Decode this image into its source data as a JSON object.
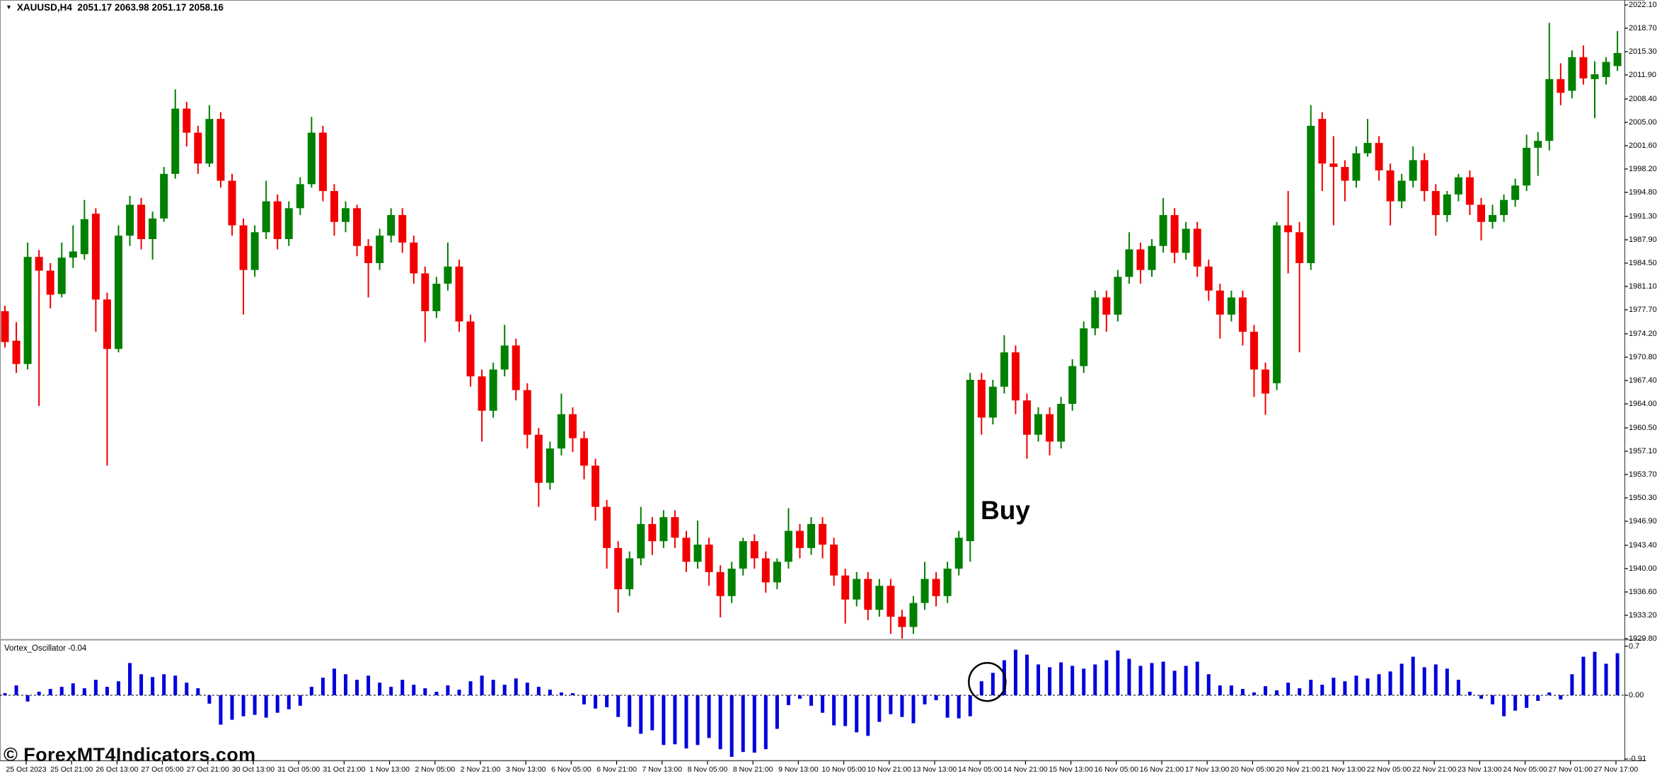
{
  "window": {
    "collapse_icon": "▼",
    "symbol_info_text": "XAUUSD,H4  2051.17 2063.98 2051.17 2058.16",
    "watermark": "© ForexMT4Indicators.com"
  },
  "chart_data": {
    "type": "candlestick_with_oscillator",
    "symbol": "XAUUSD",
    "timeframe": "H4",
    "info_ohlc": {
      "open": "2051.17",
      "high": "2063.98",
      "low": "2051.17",
      "close": "2058.16"
    },
    "colors": {
      "up": "#008000",
      "down": "#f20000",
      "oscillator": "#0000dd",
      "zero_line": "#000000",
      "axis_line": "#4a4a4a",
      "separator": "#9a9a9a"
    },
    "price_axis": {
      "labels": [
        "2022.10",
        "2018.70",
        "2015.30",
        "2011.90",
        "2008.40",
        "2005.00",
        "2001.60",
        "1998.20",
        "1994.80",
        "1991.30",
        "1987.90",
        "1984.50",
        "1981.10",
        "1977.70",
        "1974.20",
        "1970.80",
        "1967.40",
        "1964.00",
        "1960.50",
        "1957.10",
        "1953.70",
        "1950.30",
        "1946.90",
        "1943.40",
        "1940.00",
        "1936.60",
        "1933.20",
        "1929.80"
      ],
      "ymax": 2022.1,
      "ymin": 1929.8
    },
    "x_axis": {
      "labels": [
        "25 Oct 2023",
        "25 Oct 21:00",
        "26 Oct 13:00",
        "27 Oct 05:00",
        "27 Oct 21:00",
        "30 Oct 13:00",
        "31 Oct 05:00",
        "31 Oct 21:00",
        "1 Nov 13:00",
        "2 Nov 05:00",
        "2 Nov 21:00",
        "3 Nov 13:00",
        "6 Nov 05:00",
        "6 Nov 21:00",
        "7 Nov 13:00",
        "8 Nov 05:00",
        "8 Nov 21:00",
        "9 Nov 13:00",
        "10 Nov 05:00",
        "10 Nov 21:00",
        "13 Nov 13:00",
        "14 Nov 05:00",
        "14 Nov 21:00",
        "15 Nov 13:00",
        "16 Nov 05:00",
        "16 Nov 21:00",
        "17 Nov 13:00",
        "20 Nov 05:00",
        "20 Nov 21:00",
        "21 Nov 13:00",
        "22 Nov 05:00",
        "22 Nov 21:00",
        "23 Nov 13:00",
        "24 Nov 05:00",
        "27 Nov 01:00",
        "27 Nov 17:00"
      ]
    },
    "candles_ohlc": [
      [
        1977.5,
        1978.3,
        1972.2,
        1973.0
      ],
      [
        1973.2,
        1975.9,
        1968.5,
        1969.8
      ],
      [
        1969.8,
        1987.5,
        1969.0,
        1985.4
      ],
      [
        1985.4,
        1986.4,
        1963.7,
        1983.4
      ],
      [
        1983.4,
        1984.5,
        1977.9,
        1979.9
      ],
      [
        1980.0,
        1987.5,
        1979.5,
        1985.3
      ],
      [
        1985.3,
        1990.0,
        1983.8,
        1986.2
      ],
      [
        1985.8,
        1993.7,
        1985.0,
        1990.9
      ],
      [
        1991.7,
        1992.5,
        1974.5,
        1979.2
      ],
      [
        1979.2,
        1980.2,
        1955.0,
        1972.0
      ],
      [
        1972.0,
        1990.0,
        1971.5,
        1988.5
      ],
      [
        1988.5,
        1994.3,
        1987.0,
        1993.0
      ],
      [
        1993.0,
        1994.0,
        1986.5,
        1988.0
      ],
      [
        1988.0,
        1992.0,
        1985.0,
        1991.0
      ],
      [
        1991.0,
        1998.5,
        1990.5,
        1997.5
      ],
      [
        1997.5,
        2009.8,
        1996.8,
        2007.0
      ],
      [
        2007.0,
        2008.0,
        2001.5,
        2003.5
      ],
      [
        2003.5,
        2004.5,
        1997.5,
        1999.0
      ],
      [
        1999.0,
        2007.5,
        1998.5,
        2005.5
      ],
      [
        2005.5,
        2006.5,
        1995.5,
        1996.5
      ],
      [
        1996.5,
        1997.5,
        1988.5,
        1990.0
      ],
      [
        1990.0,
        1991.0,
        1977.0,
        1983.5
      ],
      [
        1983.5,
        1990.0,
        1982.5,
        1989.0
      ],
      [
        1989.0,
        1996.5,
        1988.0,
        1993.5
      ],
      [
        1993.5,
        1994.5,
        1986.5,
        1988.0
      ],
      [
        1988.0,
        1993.5,
        1987.0,
        1992.5
      ],
      [
        1992.5,
        1997.0,
        1991.5,
        1996.0
      ],
      [
        1996.0,
        2005.8,
        1995.5,
        2003.5
      ],
      [
        2003.5,
        2004.5,
        1993.5,
        1995.0
      ],
      [
        1995.0,
        1996.0,
        1988.5,
        1990.5
      ],
      [
        1990.5,
        1993.5,
        1989.0,
        1992.5
      ],
      [
        1992.5,
        1993.0,
        1985.5,
        1987.0
      ],
      [
        1987.0,
        1988.0,
        1979.5,
        1984.5
      ],
      [
        1984.5,
        1989.5,
        1983.5,
        1988.5
      ],
      [
        1988.5,
        1992.5,
        1987.5,
        1991.5
      ],
      [
        1991.5,
        1992.5,
        1986.0,
        1987.5
      ],
      [
        1987.5,
        1988.5,
        1981.5,
        1983.0
      ],
      [
        1983.0,
        1984.0,
        1973.0,
        1977.5
      ],
      [
        1977.5,
        1982.5,
        1976.5,
        1981.5
      ],
      [
        1981.5,
        1987.5,
        1980.5,
        1984.0
      ],
      [
        1984.0,
        1985.0,
        1974.5,
        1976.0
      ],
      [
        1976.0,
        1977.0,
        1966.5,
        1968.0
      ],
      [
        1968.0,
        1969.0,
        1958.5,
        1963.0
      ],
      [
        1963.0,
        1970.0,
        1962.0,
        1969.0
      ],
      [
        1969.0,
        1975.5,
        1968.0,
        1972.5
      ],
      [
        1972.5,
        1973.5,
        1964.5,
        1966.0
      ],
      [
        1966.0,
        1967.0,
        1957.5,
        1959.5
      ],
      [
        1959.5,
        1960.5,
        1949.0,
        1952.5
      ],
      [
        1952.5,
        1958.5,
        1951.5,
        1957.5
      ],
      [
        1957.5,
        1965.5,
        1956.5,
        1962.5
      ],
      [
        1962.5,
        1963.5,
        1957.0,
        1959.0
      ],
      [
        1959.0,
        1960.0,
        1953.0,
        1955.0
      ],
      [
        1955.0,
        1956.0,
        1947.0,
        1949.0
      ],
      [
        1949.0,
        1950.0,
        1940.0,
        1943.0
      ],
      [
        1943.0,
        1944.0,
        1933.6,
        1937.0
      ],
      [
        1937.0,
        1942.5,
        1936.0,
        1941.5
      ],
      [
        1941.5,
        1949.0,
        1940.5,
        1946.5
      ],
      [
        1946.5,
        1947.5,
        1942.0,
        1944.0
      ],
      [
        1944.0,
        1948.5,
        1943.0,
        1947.5
      ],
      [
        1947.5,
        1948.5,
        1943.0,
        1944.5
      ],
      [
        1944.5,
        1945.5,
        1939.5,
        1941.0
      ],
      [
        1941.0,
        1947.0,
        1940.0,
        1943.5
      ],
      [
        1943.5,
        1944.5,
        1937.5,
        1939.5
      ],
      [
        1939.5,
        1940.5,
        1932.9,
        1936.0
      ],
      [
        1936.0,
        1941.0,
        1935.0,
        1940.0
      ],
      [
        1940.0,
        1944.5,
        1939.0,
        1944.0
      ],
      [
        1944.0,
        1945.0,
        1940.0,
        1941.5
      ],
      [
        1941.5,
        1942.5,
        1936.5,
        1938.0
      ],
      [
        1938.0,
        1941.5,
        1937.0,
        1941.0
      ],
      [
        1941.0,
        1948.8,
        1940.0,
        1945.5
      ],
      [
        1945.5,
        1946.5,
        1941.5,
        1943.0
      ],
      [
        1943.0,
        1947.5,
        1942.0,
        1946.5
      ],
      [
        1946.5,
        1947.5,
        1941.5,
        1943.5
      ],
      [
        1943.5,
        1944.5,
        1937.5,
        1939.0
      ],
      [
        1939.0,
        1940.0,
        1932.0,
        1935.5
      ],
      [
        1935.5,
        1939.5,
        1934.5,
        1938.5
      ],
      [
        1938.5,
        1939.5,
        1932.5,
        1934.0
      ],
      [
        1934.0,
        1938.5,
        1933.0,
        1937.5
      ],
      [
        1937.5,
        1938.5,
        1930.5,
        1933.0
      ],
      [
        1933.0,
        1934.0,
        1929.8,
        1931.5
      ],
      [
        1931.5,
        1936.0,
        1930.5,
        1935.0
      ],
      [
        1935.0,
        1941.0,
        1934.0,
        1938.5
      ],
      [
        1938.5,
        1939.5,
        1934.5,
        1936.0
      ],
      [
        1936.0,
        1941.0,
        1935.0,
        1940.0
      ],
      [
        1940.0,
        1945.5,
        1939.0,
        1944.5
      ],
      [
        1944.0,
        1968.5,
        1941.0,
        1967.5
      ],
      [
        1967.5,
        1968.5,
        1959.5,
        1962.0
      ],
      [
        1962.0,
        1967.5,
        1961.0,
        1966.5
      ],
      [
        1966.5,
        1974.0,
        1965.5,
        1971.5
      ],
      [
        1971.5,
        1972.5,
        1962.5,
        1964.5
      ],
      [
        1964.5,
        1965.5,
        1956.0,
        1959.5
      ],
      [
        1959.5,
        1963.5,
        1958.5,
        1962.5
      ],
      [
        1962.5,
        1963.5,
        1956.5,
        1958.5
      ],
      [
        1958.5,
        1965.0,
        1957.5,
        1964.0
      ],
      [
        1964.0,
        1970.5,
        1963.0,
        1969.5
      ],
      [
        1969.5,
        1976.0,
        1968.5,
        1975.0
      ],
      [
        1975.0,
        1980.5,
        1974.0,
        1979.5
      ],
      [
        1979.5,
        1980.5,
        1974.5,
        1977.0
      ],
      [
        1977.0,
        1983.5,
        1976.0,
        1982.5
      ],
      [
        1982.5,
        1989.0,
        1981.5,
        1986.5
      ],
      [
        1986.5,
        1987.5,
        1981.5,
        1983.5
      ],
      [
        1983.5,
        1988.0,
        1982.5,
        1987.0
      ],
      [
        1987.0,
        1994.0,
        1986.0,
        1991.5
      ],
      [
        1991.5,
        1992.5,
        1984.5,
        1986.0
      ],
      [
        1986.0,
        1990.5,
        1985.0,
        1989.5
      ],
      [
        1989.5,
        1990.5,
        1982.5,
        1984.0
      ],
      [
        1984.0,
        1985.0,
        1979.0,
        1980.5
      ],
      [
        1980.5,
        1981.5,
        1973.5,
        1977.0
      ],
      [
        1977.0,
        1980.5,
        1976.0,
        1979.5
      ],
      [
        1979.5,
        1980.5,
        1972.5,
        1974.5
      ],
      [
        1974.5,
        1975.5,
        1965.0,
        1969.0
      ],
      [
        1969.0,
        1970.0,
        1962.4,
        1965.5
      ],
      [
        1967.0,
        1990.5,
        1966.0,
        1990.0
      ],
      [
        1990.0,
        1995.0,
        1983.0,
        1989.0
      ],
      [
        1989.0,
        1990.5,
        1971.5,
        1984.5
      ],
      [
        1984.5,
        2007.5,
        1983.5,
        2004.5
      ],
      [
        2005.5,
        2006.5,
        1995.0,
        1999.0
      ],
      [
        1999.0,
        2003.0,
        1990.0,
        1998.5
      ],
      [
        1998.5,
        1999.5,
        1993.5,
        1996.5
      ],
      [
        1996.5,
        2001.5,
        1995.5,
        2000.5
      ],
      [
        2000.5,
        2005.5,
        2000.0,
        2002.0
      ],
      [
        2002.0,
        2003.0,
        1996.5,
        1998.0
      ],
      [
        1998.0,
        1999.0,
        1990.0,
        1993.5
      ],
      [
        1993.5,
        1997.5,
        1992.5,
        1996.5
      ],
      [
        1996.5,
        2001.5,
        1995.5,
        1999.5
      ],
      [
        1999.5,
        2000.5,
        1993.5,
        1995.0
      ],
      [
        1995.0,
        1996.0,
        1988.5,
        1991.5
      ],
      [
        1991.5,
        1995.0,
        1990.5,
        1994.5
      ],
      [
        1994.5,
        1997.5,
        1993.5,
        1997.0
      ],
      [
        1997.0,
        1998.0,
        1991.5,
        1993.0
      ],
      [
        1993.0,
        1994.0,
        1987.8,
        1990.5
      ],
      [
        1990.5,
        1993.0,
        1989.5,
        1991.5
      ],
      [
        1991.5,
        1994.5,
        1990.5,
        1993.7
      ],
      [
        1993.7,
        1996.8,
        1992.7,
        1995.8
      ],
      [
        1995.8,
        2003.2,
        1995.0,
        2001.3
      ],
      [
        2001.3,
        2003.6,
        1997.2,
        2002.3
      ],
      [
        2002.3,
        2019.5,
        2000.9,
        2011.3
      ],
      [
        2011.3,
        2013.6,
        2007.5,
        2009.3
      ],
      [
        2009.6,
        2015.5,
        2008.5,
        2014.5
      ],
      [
        2014.5,
        2016.2,
        2010.5,
        2011.4
      ],
      [
        2011.3,
        2013.9,
        2005.6,
        2012.0
      ],
      [
        2011.6,
        2014.5,
        2010.5,
        2013.8
      ],
      [
        2013.2,
        2018.3,
        2012.5,
        2015.1
      ]
    ],
    "oscillator": {
      "label": "Vortex_Oscillator -0.04",
      "name": "Vortex_Oscillator",
      "current_value": "-0.04",
      "axis_labels": {
        "top": "0.7",
        "zero": "0.00",
        "bottom": "-0.91"
      },
      "ymax": 0.7,
      "ymin": -0.91,
      "values": [
        0.03,
        0.14,
        -0.09,
        0.05,
        0.09,
        0.12,
        0.17,
        0.1,
        0.22,
        0.12,
        0.2,
        0.46,
        0.3,
        0.26,
        0.3,
        0.28,
        0.18,
        0.1,
        -0.12,
        -0.42,
        -0.35,
        -0.3,
        -0.28,
        -0.32,
        -0.25,
        -0.2,
        -0.15,
        0.12,
        0.25,
        0.38,
        0.3,
        0.22,
        0.28,
        0.18,
        0.12,
        0.22,
        0.15,
        0.1,
        0.05,
        0.14,
        0.08,
        0.2,
        0.28,
        0.22,
        0.15,
        0.24,
        0.18,
        0.12,
        0.08,
        0.04,
        0.03,
        -0.13,
        -0.19,
        -0.17,
        -0.31,
        -0.45,
        -0.55,
        -0.5,
        -0.71,
        -0.7,
        -0.76,
        -0.71,
        -0.61,
        -0.77,
        -0.88,
        -0.81,
        -0.82,
        -0.77,
        -0.48,
        -0.14,
        -0.05,
        -0.15,
        -0.25,
        -0.43,
        -0.44,
        -0.53,
        -0.58,
        -0.38,
        -0.27,
        -0.31,
        -0.4,
        -0.13,
        -0.07,
        -0.32,
        -0.33,
        -0.3,
        0.2,
        0.32,
        0.5,
        0.65,
        0.58,
        0.44,
        0.4,
        0.47,
        0.42,
        0.38,
        0.44,
        0.5,
        0.64,
        0.52,
        0.42,
        0.46,
        0.48,
        0.35,
        0.42,
        0.48,
        0.3,
        0.14,
        0.14,
        0.09,
        0.04,
        0.13,
        0.07,
        0.18,
        0.1,
        0.22,
        0.15,
        0.25,
        0.2,
        0.28,
        0.24,
        0.3,
        0.34,
        0.45,
        0.55,
        0.4,
        0.44,
        0.38,
        0.22,
        0.05,
        -0.05,
        -0.13,
        -0.3,
        -0.22,
        -0.18,
        -0.08,
        0.04,
        -0.06,
        0.3,
        0.55,
        0.62,
        0.45,
        0.6
      ]
    },
    "annotations": {
      "buy_label": "Buy",
      "circle_marker": {
        "center_bar_index": 86.5,
        "center_value": 0.19
      }
    }
  }
}
